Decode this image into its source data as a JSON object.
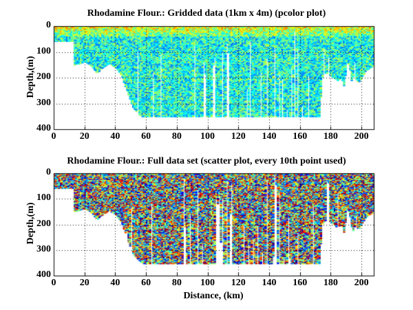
{
  "chart_data": [
    {
      "type": "heatmap",
      "title": "Rhodamine Flour.: Gridded data (1km x 4m) (pcolor plot)",
      "xlabel": "",
      "ylabel": "Depth,(m)",
      "xlim": [
        0,
        208
      ],
      "ylim": [
        400,
        0
      ],
      "y_reversed": true,
      "xticks": [
        "0",
        "20",
        "40",
        "60",
        "80",
        "100",
        "120",
        "140",
        "160",
        "180",
        "200"
      ],
      "yticks": [
        "0",
        "100",
        "200",
        "300",
        "400"
      ],
      "grid": "dotted",
      "colormap": "jet",
      "cell_size": "1km x 4m",
      "pattern": "yellow/orange near surface (0-50 m), cyan/green/blue below"
    },
    {
      "type": "scatter",
      "title": "Rhodamine Flour.: Full data set (scatter plot, every 10th point used)",
      "xlabel": "Distance, (km)",
      "ylabel": "Depth,(m)",
      "xlim": [
        0,
        208
      ],
      "ylim": [
        400,
        0
      ],
      "y_reversed": true,
      "xticks": [
        "0",
        "20",
        "40",
        "60",
        "80",
        "100",
        "120",
        "140",
        "160",
        "180",
        "200"
      ],
      "yticks": [
        "0",
        "100",
        "200",
        "300",
        "400"
      ],
      "grid": "dotted",
      "colormap": "jet",
      "pattern": "full-range noisy colors throughout"
    }
  ],
  "bottom_profile": {
    "distance_km": [
      0,
      13,
      13.5,
      16,
      20,
      24,
      28,
      32,
      36,
      40,
      44,
      48,
      52,
      56,
      58,
      100,
      150,
      170,
      173,
      174,
      177,
      180,
      184,
      187,
      189,
      190,
      192,
      194,
      196,
      198,
      200,
      203,
      206,
      208
    ],
    "depth_m": [
      58,
      58,
      150,
      145,
      138,
      150,
      180,
      160,
      145,
      160,
      190,
      260,
      320,
      345,
      352,
      352,
      352,
      352,
      352,
      200,
      180,
      190,
      210,
      200,
      240,
      140,
      150,
      230,
      200,
      220,
      200,
      170,
      160,
      150
    ]
  }
}
